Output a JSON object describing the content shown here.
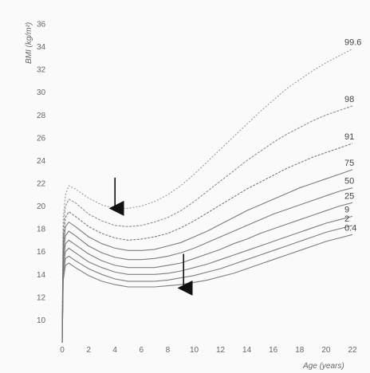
{
  "chart_data": {
    "type": "line",
    "title": "",
    "xlabel": "Age (years)",
    "ylabel": "BMI (kg/m²)",
    "xlim": [
      0,
      22
    ],
    "ylim": [
      8,
      36
    ],
    "x_ticks": [
      "0",
      "2",
      "4",
      "6",
      "8",
      "10",
      "12",
      "14",
      "16",
      "18",
      "20",
      "22"
    ],
    "y_ticks": [
      "10",
      "12",
      "14",
      "16",
      "18",
      "20",
      "22",
      "24",
      "26",
      "28",
      "30",
      "32",
      "34",
      "36"
    ],
    "grid": false,
    "legend": "percentile labels at right end of curves",
    "x": [
      0,
      0.08,
      0.25,
      0.5,
      1,
      2,
      3,
      4,
      5,
      6,
      7,
      8,
      9,
      10,
      11,
      12,
      13,
      14,
      15,
      16,
      17,
      18,
      19,
      20,
      21,
      22
    ],
    "series": [
      {
        "name": "99.6",
        "values": [
          9.5,
          19.0,
          21.0,
          21.8,
          21.5,
          20.7,
          20.1,
          19.8,
          19.8,
          20.0,
          20.4,
          21.0,
          21.8,
          22.8,
          23.9,
          25.0,
          26.1,
          27.2,
          28.3,
          29.3,
          30.3,
          31.1,
          31.9,
          32.6,
          33.2,
          33.8
        ]
      },
      {
        "name": "98",
        "values": [
          9.0,
          18.0,
          20.0,
          20.6,
          20.3,
          19.3,
          18.7,
          18.3,
          18.2,
          18.3,
          18.6,
          19.0,
          19.6,
          20.4,
          21.3,
          22.2,
          23.1,
          24.0,
          24.8,
          25.6,
          26.3,
          26.9,
          27.5,
          28.0,
          28.4,
          28.8
        ]
      },
      {
        "name": "91",
        "values": [
          8.6,
          17.2,
          19.0,
          19.5,
          19.1,
          18.2,
          17.6,
          17.2,
          17.0,
          17.1,
          17.3,
          17.6,
          18.1,
          18.7,
          19.4,
          20.1,
          20.8,
          21.5,
          22.1,
          22.7,
          23.3,
          23.8,
          24.3,
          24.7,
          25.1,
          25.5
        ]
      },
      {
        "name": "75",
        "values": [
          8.3,
          16.5,
          18.2,
          18.6,
          18.2,
          17.3,
          16.7,
          16.3,
          16.1,
          16.1,
          16.2,
          16.5,
          16.8,
          17.3,
          17.8,
          18.4,
          19.0,
          19.6,
          20.1,
          20.6,
          21.1,
          21.6,
          22.0,
          22.4,
          22.8,
          23.2
        ]
      },
      {
        "name": "50",
        "values": [
          8.0,
          15.8,
          17.4,
          17.8,
          17.4,
          16.5,
          15.9,
          15.5,
          15.3,
          15.3,
          15.4,
          15.6,
          15.9,
          16.3,
          16.8,
          17.3,
          17.8,
          18.3,
          18.8,
          19.3,
          19.7,
          20.1,
          20.5,
          20.9,
          21.3,
          21.6
        ]
      },
      {
        "name": "25",
        "values": [
          7.8,
          15.2,
          16.7,
          17.0,
          16.6,
          15.8,
          15.2,
          14.8,
          14.6,
          14.6,
          14.6,
          14.8,
          15.0,
          15.4,
          15.8,
          16.2,
          16.7,
          17.1,
          17.6,
          18.0,
          18.4,
          18.8,
          19.2,
          19.6,
          20.0,
          20.3
        ]
      },
      {
        "name": "9",
        "values": [
          7.6,
          14.6,
          16.0,
          16.3,
          15.9,
          15.1,
          14.6,
          14.2,
          14.0,
          14.0,
          14.0,
          14.1,
          14.3,
          14.6,
          14.9,
          15.3,
          15.7,
          16.1,
          16.5,
          16.9,
          17.3,
          17.7,
          18.1,
          18.5,
          18.8,
          19.1
        ]
      },
      {
        "name": "2",
        "values": [
          7.5,
          14.0,
          15.4,
          15.6,
          15.2,
          14.5,
          14.0,
          13.6,
          13.4,
          13.4,
          13.4,
          13.5,
          13.7,
          13.9,
          14.2,
          14.5,
          14.9,
          15.3,
          15.7,
          16.1,
          16.5,
          16.9,
          17.3,
          17.7,
          18.0,
          18.3
        ]
      },
      {
        "name": "0.4",
        "values": [
          7.4,
          13.5,
          14.8,
          15.0,
          14.6,
          13.9,
          13.4,
          13.1,
          12.9,
          12.9,
          12.9,
          13.0,
          13.1,
          13.3,
          13.5,
          13.8,
          14.1,
          14.5,
          14.9,
          15.3,
          15.7,
          16.1,
          16.5,
          16.9,
          17.2,
          17.5
        ]
      }
    ],
    "annotations": [
      {
        "type": "arrow-down",
        "x": 4.0,
        "y_from": 22.5,
        "y_to": 19.8
      },
      {
        "type": "arrow-down",
        "x": 9.2,
        "y_from": 15.8,
        "y_to": 12.8
      }
    ]
  },
  "colors": {
    "background": "#fafafa",
    "curves": "#6f6f6f",
    "text": "#666666",
    "arrow": "#111111"
  }
}
